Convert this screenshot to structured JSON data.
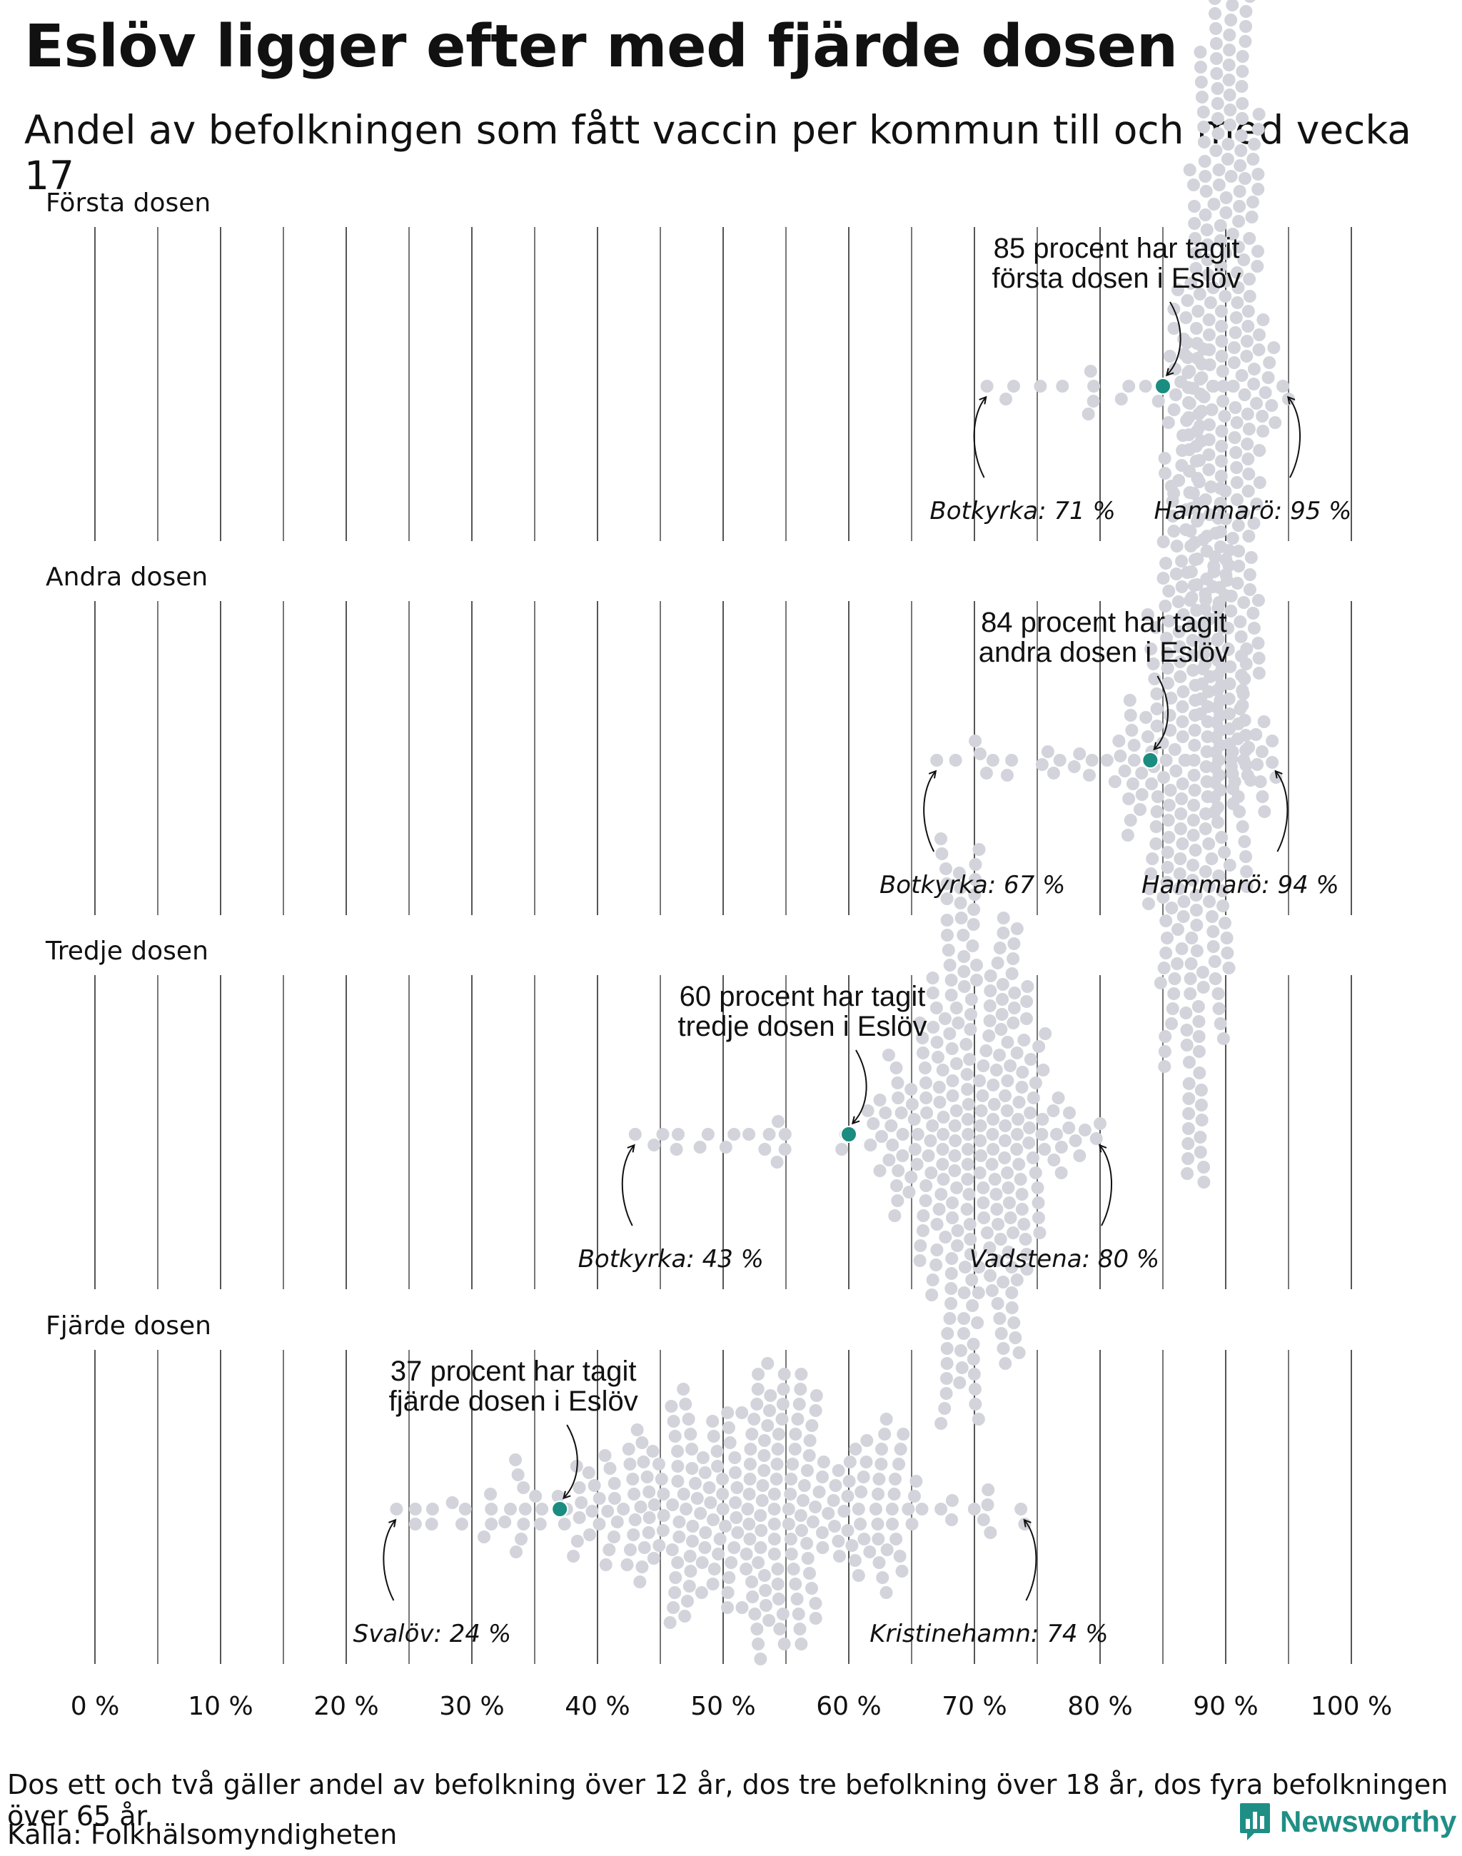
{
  "title": "Eslöv ligger efter med fjärde dosen",
  "subtitle": "Andel av befolkningen som fått vaccin per kommun till och med vecka 17",
  "footer": {
    "note": "Dos ett och två gäller andel av befolkning över 12 år, dos tre befolkning över 18 år, dos fyra befolkningen över 65 år.",
    "source": "Källa: Folkhälsomyndigheten",
    "brand": "Newsworthy"
  },
  "colors": {
    "highlight": "#1b8c80",
    "dots": "#d3d3db",
    "gridline": "#555555",
    "brand": "#1f8f86"
  },
  "chart_data": {
    "type": "scatter",
    "variant": "beeswarm",
    "xlabel": "",
    "ylabel": "",
    "xlim": [
      0,
      100
    ],
    "x_ticks": [
      0,
      10,
      20,
      30,
      40,
      50,
      60,
      70,
      80,
      90,
      100
    ],
    "x_tick_labels": [
      "0 %",
      "10 %",
      "20 %",
      "30 %",
      "40 %",
      "50 %",
      "60 %",
      "70 %",
      "80 %",
      "90 %",
      "100 %"
    ],
    "gridlines_every": 5,
    "panels": [
      {
        "label": "Första dosen",
        "highlight": {
          "name": "Eslöv",
          "value": 85,
          "line1": "85 procent har tagit",
          "line2": "första dosen i Eslöv"
        },
        "min": {
          "name": "Botkyrka",
          "value": 71,
          "label": "Botkyrka: 71 %"
        },
        "max": {
          "name": "Hammarö",
          "value": 95,
          "label": "Hammarö: 95 %"
        },
        "distribution": {
          "center": 89.8,
          "sd": 1.9
        }
      },
      {
        "label": "Andra dosen",
        "highlight": {
          "name": "Eslöv",
          "value": 84,
          "line1": "84 procent har tagit",
          "line2": "andra dosen i Eslöv"
        },
        "min": {
          "name": "Botkyrka",
          "value": 67,
          "label": "Botkyrka: 67 %"
        },
        "max": {
          "name": "Hammarö",
          "value": 94,
          "label": "Hammarö: 94 %"
        },
        "distribution": {
          "center": 87.5,
          "sd": 2.4
        }
      },
      {
        "label": "Tredje dosen",
        "highlight": {
          "name": "Eslöv",
          "value": 60,
          "line1": "60 procent har tagit",
          "line2": "tredje dosen i Eslöv"
        },
        "min": {
          "name": "Botkyrka",
          "value": 43,
          "label": "Botkyrka: 43 %"
        },
        "max": {
          "name": "Vadstena",
          "value": 80,
          "label": "Vadstena: 80 %"
        },
        "distribution": {
          "center": 69.5,
          "sd": 3.8
        }
      },
      {
        "label": "Fjärde dosen",
        "highlight": {
          "name": "Eslöv",
          "value": 37,
          "line1": "37 procent har tagit",
          "line2": "fjärde dosen i Eslöv"
        },
        "min": {
          "name": "Svalöv",
          "value": 24,
          "label": "Svalöv: 24 %"
        },
        "max": {
          "name": "Kristinehamn",
          "value": 74,
          "label": "Kristinehamn: 74 %"
        },
        "distribution": {
          "center": 52,
          "sd": 8
        }
      }
    ]
  }
}
